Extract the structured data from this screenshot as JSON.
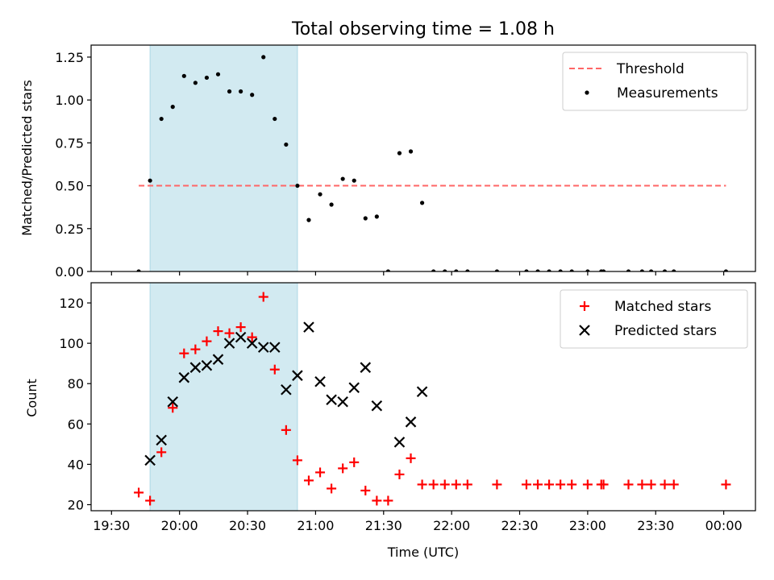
{
  "figure": {
    "title": "Total observing time = 1.08 h",
    "xlabel": "Time (UTC)",
    "x_ticks": [
      "19:30",
      "20:00",
      "20:30",
      "21:00",
      "21:30",
      "22:00",
      "22:30",
      "23:00",
      "23:30",
      "00:00"
    ],
    "x_tick_minutes": [
      0,
      30,
      60,
      90,
      120,
      150,
      180,
      210,
      240,
      270
    ],
    "xlim_minutes": [
      -9,
      284
    ],
    "shaded_span_minutes": [
      17,
      82
    ],
    "shade_color": "#add8e6"
  },
  "chart_data": [
    {
      "type": "scatter",
      "ylabel": "Matched/Predicted stars",
      "ylim": [
        0,
        1.32
      ],
      "y_ticks": [
        0.0,
        0.25,
        0.5,
        0.75,
        1.0,
        1.25
      ],
      "y_tick_labels": [
        "0.00",
        "0.25",
        "0.50",
        "0.75",
        "1.00",
        "1.25"
      ],
      "legend_position": "top-right",
      "threshold": {
        "name": "Threshold",
        "y": 0.5,
        "x_range": [
          12,
          271
        ],
        "color": "#ff6666"
      },
      "series": [
        {
          "name": "Measurements",
          "color": "#000000",
          "points": [
            [
              12,
              0.0
            ],
            [
              17,
              0.53
            ],
            [
              22,
              0.89
            ],
            [
              27,
              0.96
            ],
            [
              32,
              1.14
            ],
            [
              37,
              1.1
            ],
            [
              42,
              1.13
            ],
            [
              47,
              1.15
            ],
            [
              52,
              1.05
            ],
            [
              57,
              1.05
            ],
            [
              62,
              1.03
            ],
            [
              67,
              1.25
            ],
            [
              72,
              0.89
            ],
            [
              77,
              0.74
            ],
            [
              82,
              0.5
            ],
            [
              87,
              0.3
            ],
            [
              92,
              0.45
            ],
            [
              97,
              0.39
            ],
            [
              102,
              0.54
            ],
            [
              107,
              0.53
            ],
            [
              112,
              0.31
            ],
            [
              117,
              0.32
            ],
            [
              122,
              0.0
            ],
            [
              127,
              0.69
            ],
            [
              132,
              0.7
            ],
            [
              137,
              0.4
            ],
            [
              142,
              0.0
            ],
            [
              147,
              0.0
            ],
            [
              152,
              0.0
            ],
            [
              157,
              0.0
            ],
            [
              170,
              0.0
            ],
            [
              183,
              0.0
            ],
            [
              188,
              0.0
            ],
            [
              193,
              0.0
            ],
            [
              198,
              0.0
            ],
            [
              203,
              0.0
            ],
            [
              210,
              0.0
            ],
            [
              216,
              0.0
            ],
            [
              217,
              0.0
            ],
            [
              228,
              0.0
            ],
            [
              234,
              0.0
            ],
            [
              238,
              0.0
            ],
            [
              244,
              0.0
            ],
            [
              248,
              0.0
            ],
            [
              271,
              0.0
            ]
          ]
        }
      ]
    },
    {
      "type": "scatter",
      "ylabel": "Count",
      "ylim": [
        17,
        130
      ],
      "y_ticks": [
        20,
        40,
        60,
        80,
        100,
        120
      ],
      "y_tick_labels": [
        "20",
        "40",
        "60",
        "80",
        "100",
        "120"
      ],
      "legend_position": "top-right",
      "series": [
        {
          "name": "Matched stars",
          "marker": "plus",
          "color": "#ff0000",
          "points": [
            [
              12,
              26
            ],
            [
              17,
              22
            ],
            [
              22,
              46
            ],
            [
              27,
              68
            ],
            [
              32,
              95
            ],
            [
              37,
              97
            ],
            [
              42,
              101
            ],
            [
              47,
              106
            ],
            [
              52,
              105
            ],
            [
              57,
              108
            ],
            [
              62,
              103
            ],
            [
              67,
              123
            ],
            [
              72,
              87
            ],
            [
              77,
              57
            ],
            [
              82,
              42
            ],
            [
              87,
              32
            ],
            [
              92,
              36
            ],
            [
              97,
              28
            ],
            [
              102,
              38
            ],
            [
              107,
              41
            ],
            [
              112,
              27
            ],
            [
              117,
              22
            ],
            [
              122,
              22
            ],
            [
              127,
              35
            ],
            [
              132,
              43
            ],
            [
              137,
              30
            ],
            [
              142,
              30
            ],
            [
              147,
              30
            ],
            [
              152,
              30
            ],
            [
              157,
              30
            ],
            [
              170,
              30
            ],
            [
              183,
              30
            ],
            [
              188,
              30
            ],
            [
              193,
              30
            ],
            [
              198,
              30
            ],
            [
              203,
              30
            ],
            [
              210,
              30
            ],
            [
              216,
              30
            ],
            [
              217,
              30
            ],
            [
              228,
              30
            ],
            [
              234,
              30
            ],
            [
              238,
              30
            ],
            [
              244,
              30
            ],
            [
              248,
              30
            ],
            [
              271,
              30
            ]
          ]
        },
        {
          "name": "Predicted stars",
          "marker": "x",
          "color": "#000000",
          "points": [
            [
              17,
              42
            ],
            [
              22,
              52
            ],
            [
              27,
              71
            ],
            [
              32,
              83
            ],
            [
              37,
              88
            ],
            [
              42,
              89
            ],
            [
              47,
              92
            ],
            [
              52,
              100
            ],
            [
              57,
              103
            ],
            [
              62,
              100
            ],
            [
              67,
              98
            ],
            [
              72,
              98
            ],
            [
              77,
              77
            ],
            [
              82,
              84
            ],
            [
              87,
              108
            ],
            [
              92,
              81
            ],
            [
              97,
              72
            ],
            [
              102,
              71
            ],
            [
              107,
              78
            ],
            [
              112,
              88
            ],
            [
              117,
              69
            ],
            [
              127,
              51
            ],
            [
              132,
              61
            ],
            [
              137,
              76
            ]
          ]
        }
      ]
    }
  ]
}
